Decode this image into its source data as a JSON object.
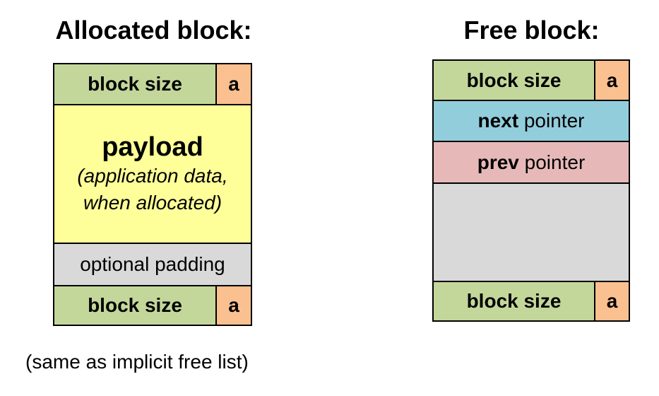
{
  "allocated": {
    "title": "Allocated block:",
    "header": {
      "size": "block size",
      "flag": "a"
    },
    "payload": {
      "label": "payload",
      "note_line1": "(application data,",
      "note_line2": "when allocated)"
    },
    "padding": "optional padding",
    "footer": {
      "size": "block size",
      "flag": "a"
    }
  },
  "free": {
    "title": "Free block:",
    "header": {
      "size": "block size",
      "flag": "a"
    },
    "next": {
      "bold": "next",
      "rest": " pointer"
    },
    "prev": {
      "bold": "prev",
      "rest": " pointer"
    },
    "footer": {
      "size": "block size",
      "flag": "a"
    }
  },
  "caption": "(same as implicit free list)",
  "colors": {
    "size": "#c4d79b",
    "flag": "#fac090",
    "payload": "#ffff99",
    "padding": "#d9d9d9",
    "next": "#92cddc",
    "prev": "#e6b9b8"
  }
}
